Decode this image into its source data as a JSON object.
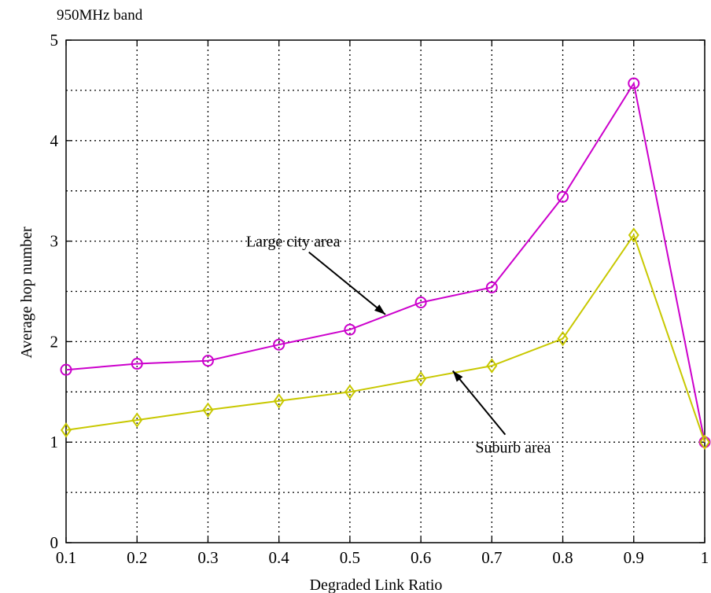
{
  "chart_data": {
    "type": "line",
    "title": "950MHz band",
    "xlabel": "Degraded Link Ratio",
    "ylabel": "Average hop number",
    "x": [
      0.1,
      0.2,
      0.3,
      0.4,
      0.5,
      0.6,
      0.7,
      0.8,
      0.9,
      1.0
    ],
    "xlim": [
      0.1,
      1.0
    ],
    "ylim": [
      0,
      5
    ],
    "x_ticks": [
      0.1,
      0.2,
      0.3,
      0.4,
      0.5,
      0.6,
      0.7,
      0.8,
      0.9,
      1.0
    ],
    "x_tick_labels": [
      "0.1",
      "0.2",
      "0.3",
      "0.4",
      "0.5",
      "0.6",
      "0.7",
      "0.8",
      "0.9",
      "1"
    ],
    "y_ticks": [
      0,
      1,
      2,
      3,
      4,
      5
    ],
    "y_tick_labels": [
      "0",
      "1",
      "2",
      "3",
      "4",
      "5"
    ],
    "y_minor_grid": [
      0.5,
      1.5,
      2.5,
      3.5,
      4.5
    ],
    "grid": true,
    "series": [
      {
        "values": [
          1.72,
          1.78,
          1.81,
          1.97,
          2.12,
          2.39,
          2.54,
          3.44,
          4.57,
          1.0
        ],
        "color": "#cc00cc",
        "marker": "circle"
      },
      {
        "values": [
          1.12,
          1.22,
          1.32,
          1.41,
          1.5,
          1.63,
          1.76,
          2.03,
          3.06,
          1.0
        ],
        "color": "#c8c800",
        "marker": "diamond"
      }
    ],
    "annotations": [
      {
        "text": "Large city area",
        "label_at": [
          0.42,
          3.0
        ],
        "arrow_to": [
          0.55,
          2.27
        ]
      },
      {
        "text": "Suburb area",
        "label_at": [
          0.73,
          0.95
        ],
        "arrow_to": [
          0.645,
          1.71
        ]
      }
    ]
  }
}
